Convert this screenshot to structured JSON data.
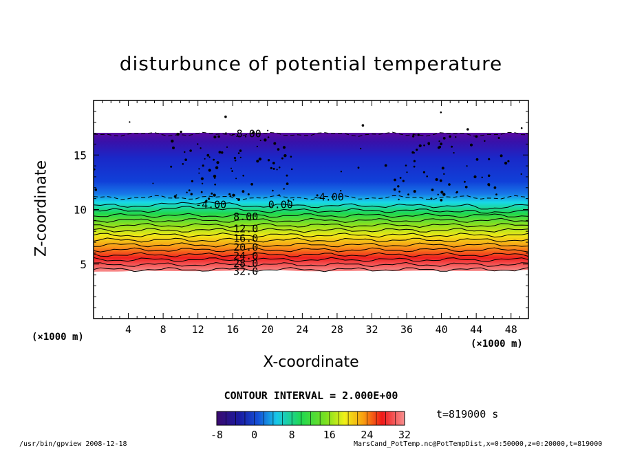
{
  "chart_data": {
    "type": "contour",
    "title": "disturbunce of potential temperature",
    "xlabel": "X-coordinate",
    "ylabel": "Z-coordinate",
    "x_unit": "(×1000 m)",
    "z_unit": "(×1000 m)",
    "xlim": [
      0,
      50
    ],
    "ylim": [
      0,
      20
    ],
    "xticks": [
      4,
      8,
      12,
      16,
      20,
      24,
      28,
      32,
      36,
      40,
      44,
      48
    ],
    "yticks": [
      5,
      10,
      15
    ],
    "contour_interval_label": "CONTOUR INTERVAL = 2.000E+00",
    "time_label": "t=819000 s",
    "contour_labels": [
      {
        "text": "-8.00",
        "x": 17.5,
        "z": 17.0
      },
      {
        "text": "-4.00",
        "x": 13.5,
        "z": 10.5
      },
      {
        "text": "-4.00",
        "x": 27.0,
        "z": 11.2
      },
      {
        "text": "0.00",
        "x": 21.5,
        "z": 10.5
      },
      {
        "text": "8.00",
        "x": 17.5,
        "z": 9.4
      },
      {
        "text": "12.0",
        "x": 17.5,
        "z": 8.3
      },
      {
        "text": "16.0",
        "x": 17.5,
        "z": 7.4
      },
      {
        "text": "20.0",
        "x": 17.5,
        "z": 6.6
      },
      {
        "text": "24.0",
        "x": 17.5,
        "z": 5.8
      },
      {
        "text": "28.0",
        "x": 17.5,
        "z": 5.1
      },
      {
        "text": "32.0",
        "x": 17.5,
        "z": 4.4
      }
    ],
    "colorbar": {
      "min": -8,
      "max": 32,
      "ticks": [
        "-8",
        "0",
        "8",
        "16",
        "24",
        "32"
      ]
    },
    "colors": {
      "background": "#ffffff",
      "scale": [
        "#3a0a6e",
        "#1a1aa0",
        "#1450d8",
        "#18c8e8",
        "#20d850",
        "#7ae020",
        "#f0f018",
        "#f8a010",
        "#f01818",
        "#f89090"
      ]
    }
  },
  "footer": {
    "left": "/usr/bin/gpview   2008-12-18",
    "right": "MarsCand_PotTemp.nc@PotTempDist,x=0:50000,z=0:20000,t=819000"
  }
}
